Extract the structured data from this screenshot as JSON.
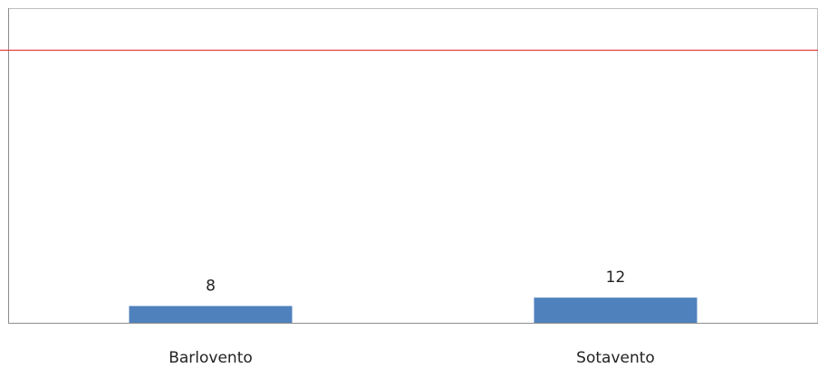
{
  "chart_data": {
    "type": "bar",
    "categories": [
      "Barlovento",
      "Sotavento"
    ],
    "values": [
      8,
      12
    ],
    "data_labels": [
      "8",
      "12"
    ],
    "reference_line": {
      "value": 130,
      "color": "#e3261b"
    },
    "ylim": [
      0,
      150
    ],
    "title": "",
    "xlabel": "",
    "ylabel": "",
    "grid": false,
    "legend": "none",
    "colors": {
      "bar": "#4f81bd",
      "axis": "#8c8c8c",
      "frame": "#bfbfbf",
      "text": "#222222"
    }
  }
}
